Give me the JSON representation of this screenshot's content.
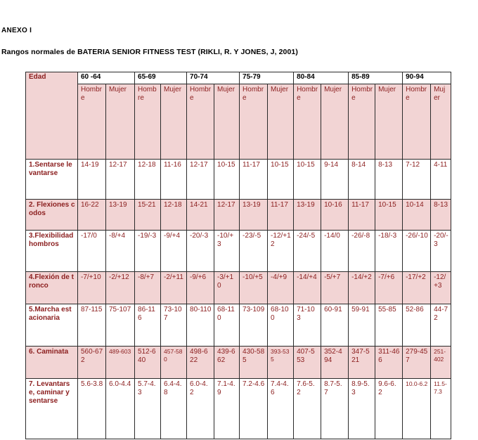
{
  "anexo": "ANEXO I",
  "heading": "Rangos normales de  BATERIA SENIOR FITNESS TEST (RIKLI, R. Y JONES, J, 2001)",
  "table": {
    "edad_label": "Edad",
    "age_groups": [
      "60 -64",
      "65-69",
      "70-74",
      "75-79",
      "80-84",
      "85-89",
      "90-94"
    ],
    "gender_labels": [
      "Hombre",
      "Mujer"
    ],
    "rows": [
      {
        "label": "1.Sentarse levantarse",
        "values": [
          "14-19",
          "12-17",
          "12-18",
          "11-16",
          "12-17",
          "10-15",
          "11-17",
          "10-15",
          "10-15",
          "9-14",
          "8-14",
          "8-13",
          "7-12",
          "4-11"
        ]
      },
      {
        "label": "2. Flexiones codos",
        "values": [
          "16-22",
          "13-19",
          "15-21",
          "12-18",
          "14-21",
          "12-17",
          "13-19",
          "11-17",
          "13-19",
          "10-16",
          "11-17",
          "10-15",
          "10-14",
          "8-13"
        ]
      },
      {
        "label": "3.Flexibilidad hombros",
        "values": [
          "-17/0",
          "-8/+4",
          "-19/-3",
          "-9/+4",
          "-20/-3",
          "-10/+3",
          "-23/-5",
          "-12/+12",
          "-24/-5",
          "-14/0",
          "-26/-8",
          "-18/-3",
          "-26/-10",
          "-20/-3"
        ]
      },
      {
        "label": "4.Flexión de tronco",
        "values": [
          "-7/+10",
          "-2/+12",
          "-8/+7",
          "-2/+11",
          "-9/+6",
          "-3/+10",
          "-10/+5",
          "-4/+9",
          "-14/+4",
          "-5/+7",
          "-14/+2",
          "-7/+6",
          "-17/+2",
          "-12/+3"
        ]
      },
      {
        "label": "5.Marcha estacionaria",
        "values": [
          "87-115",
          "75-107",
          "86-116",
          "73-107",
          "80-110",
          "68-110",
          "73-109",
          "68-100",
          "71-103",
          "60-91",
          "59-91",
          "55-85",
          "52-86",
          "44-72"
        ]
      },
      {
        "label": "6. Caminata",
        "values": [
          "560-672",
          "489-603",
          "512-640",
          "457-580",
          "498-622",
          "439-662",
          "430-585",
          "393-535",
          "407-553",
          "352-494",
          "347-521",
          "311-466",
          "279-457",
          "251-402"
        ]
      },
      {
        "label": "7. Levantarse, caminar y sentarse",
        "values": [
          "5.6-3.8",
          "6.0-4.4",
          "5.7-4.3",
          "6.4-4.8",
          "6.0-4.2",
          "7.1-4.9",
          "7.2-4.6",
          "7.4-4.6",
          "7.6-5.2",
          "8.7-5.7",
          "8.9-5.3",
          "9.6-6.2",
          "10.0-6.2",
          "11.5-7.3"
        ]
      }
    ]
  }
}
